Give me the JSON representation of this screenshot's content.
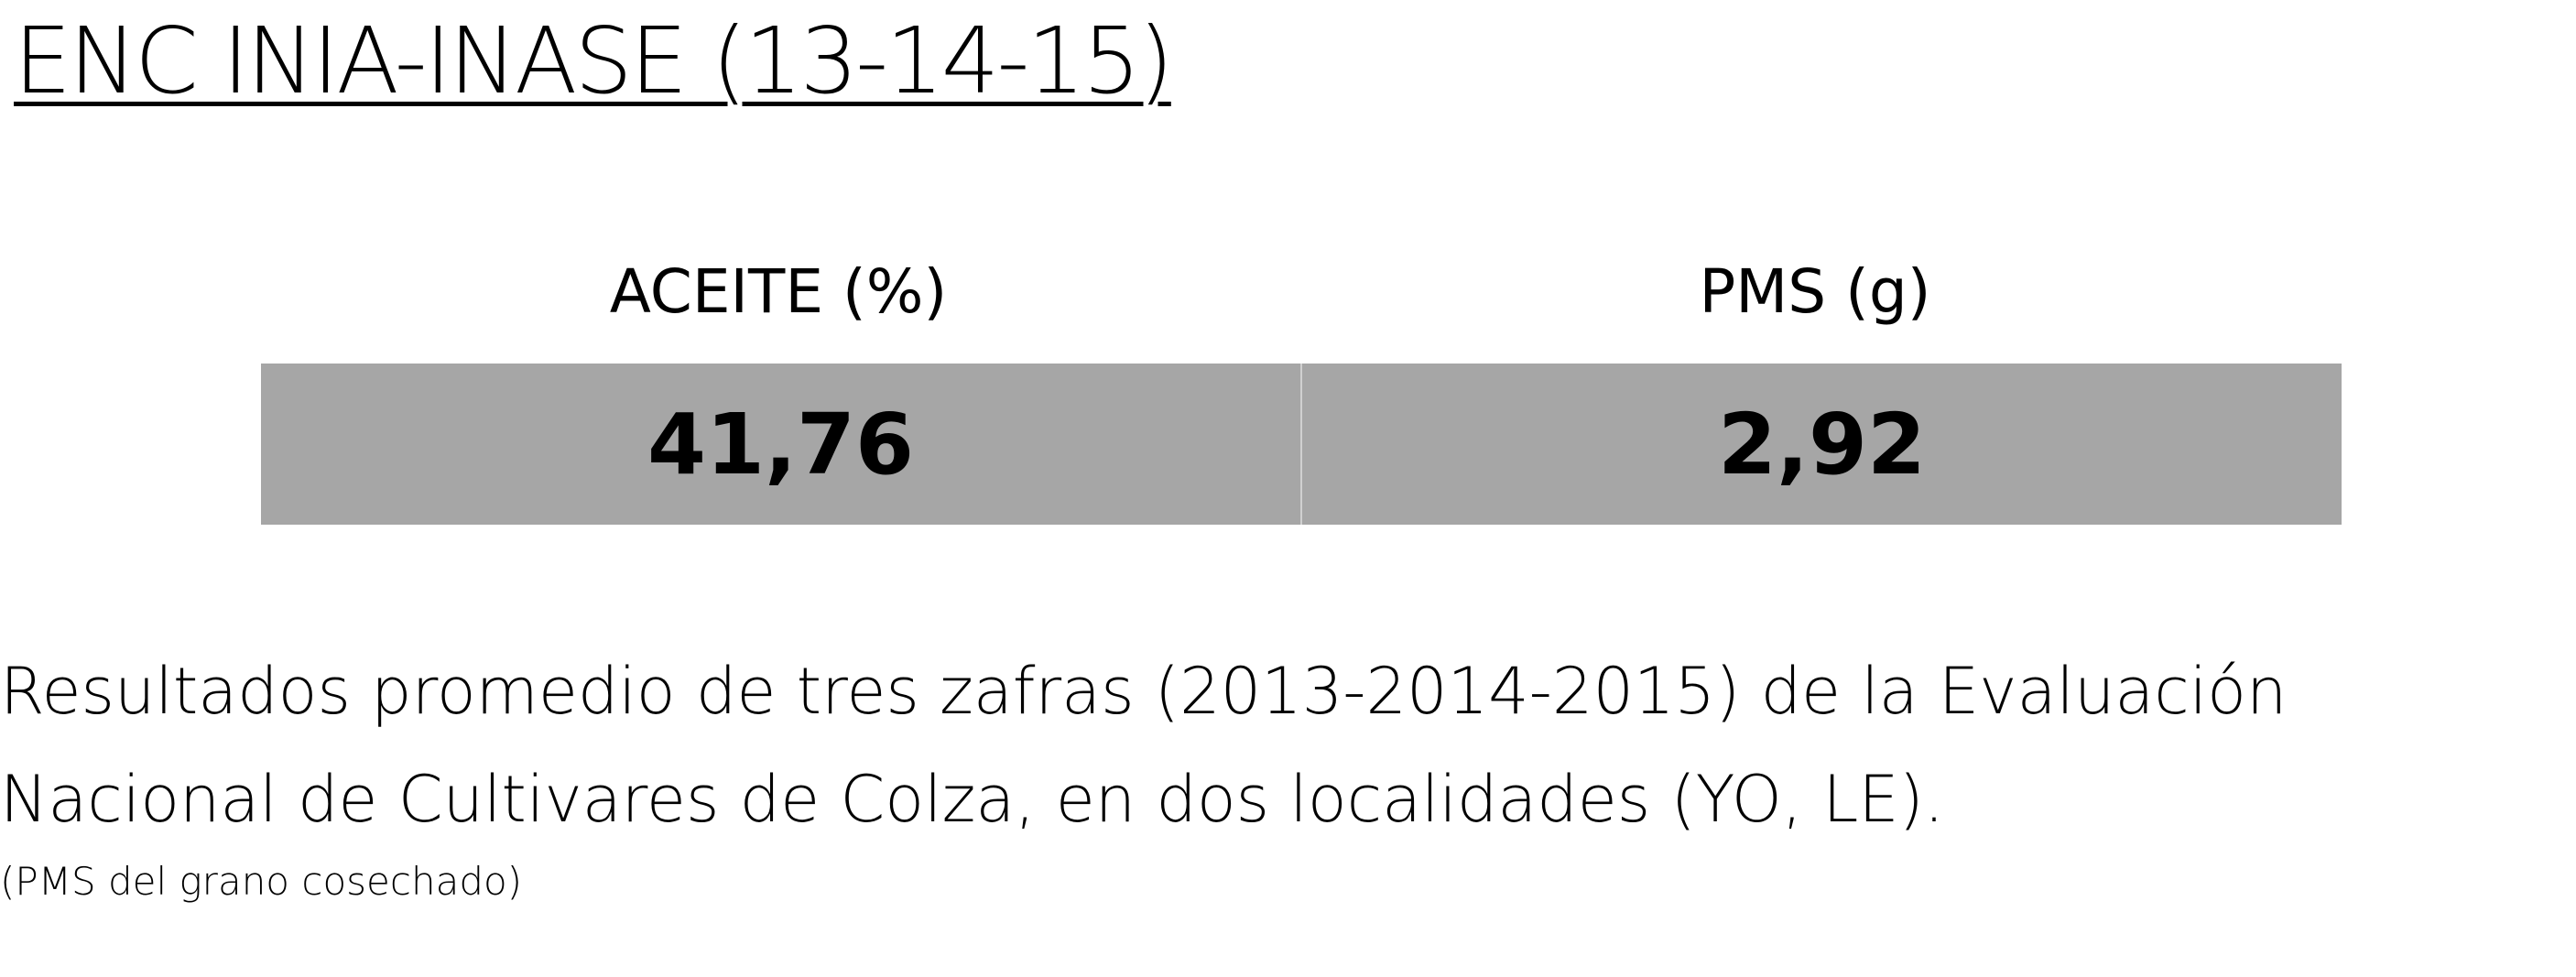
{
  "title": "ENC INIA-INASE (13-14-15)",
  "table": {
    "headers": [
      "ACEITE (%)",
      "PMS (g)"
    ],
    "rows": [
      [
        "41,76",
        "2,92"
      ]
    ]
  },
  "description": "Resultados promedio de tres zafras (2013-2014-2015) de la Evaluación Nacional de Cultivares de Colza, en dos localidades (YO, LE).",
  "note": "(PMS del grano cosechado)"
}
